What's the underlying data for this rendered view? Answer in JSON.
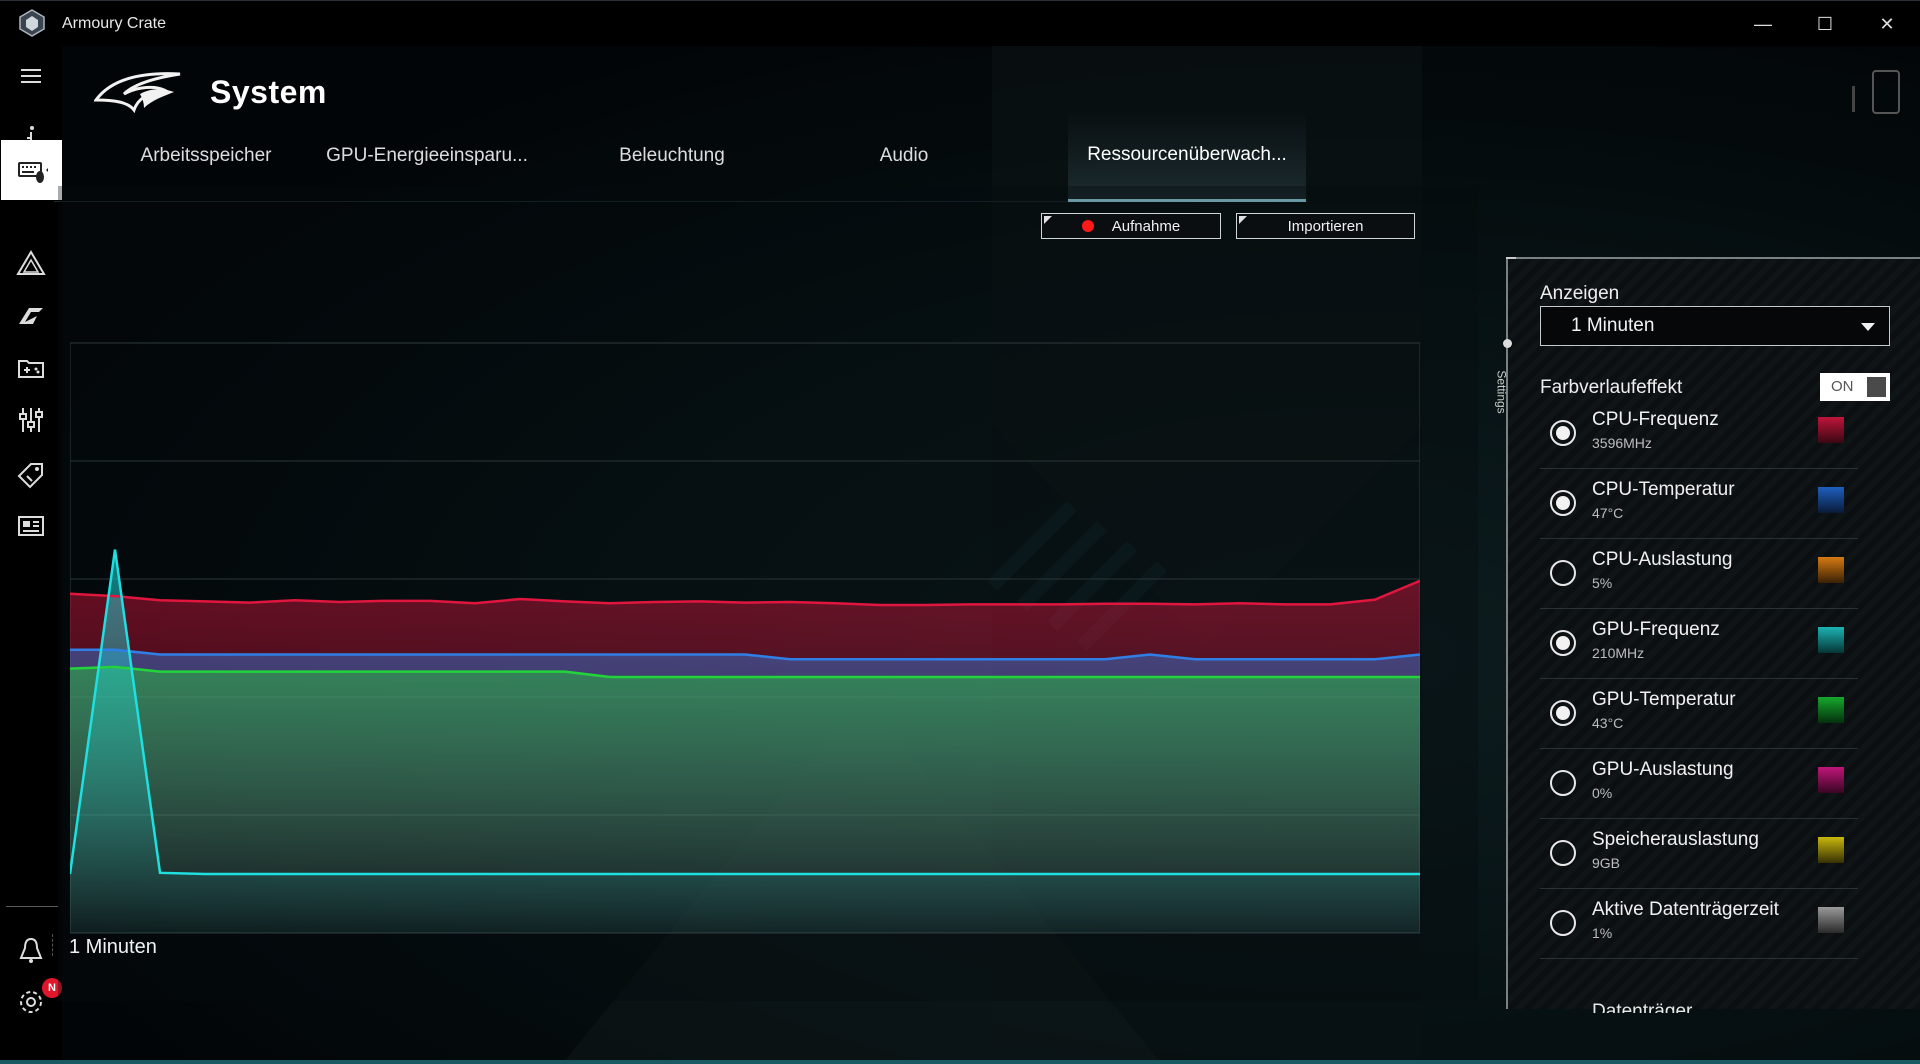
{
  "window": {
    "title": "Armoury Crate",
    "minimize_glyph": "—",
    "maximize_glyph": "☐",
    "close_glyph": "✕"
  },
  "header": {
    "page_title": "System"
  },
  "left_nav": {
    "items": [
      {
        "icon": "menu-icon"
      },
      {
        "icon": "info-icon"
      },
      {
        "icon": "device-icon",
        "active": true
      },
      {
        "icon": "aura-icon"
      },
      {
        "icon": "armoury-icon"
      },
      {
        "icon": "game-library-icon"
      },
      {
        "icon": "scenario-profiles-icon"
      },
      {
        "icon": "deals-icon"
      },
      {
        "icon": "news-icon"
      },
      {
        "icon": "user-center-icon"
      },
      {
        "icon": "settings-icon"
      }
    ],
    "settings_badge": "N"
  },
  "tabs": [
    {
      "label": "Arbeitsspeicher"
    },
    {
      "label": "GPU-Energieeinsparu..."
    },
    {
      "label": "Beleuchtung"
    },
    {
      "label": "Audio"
    },
    {
      "label": "Ressourcenüberwach...",
      "active": true
    }
  ],
  "toolbar": {
    "record_label": "Aufnahme",
    "import_label": "Importieren"
  },
  "chart_footer": {
    "range_label": "1 Minuten"
  },
  "colors": {
    "cpu_freq": "#e0163f",
    "cpu_temp": "#2f7fe6",
    "gpu_freq": "#1fe0e0",
    "gpu_temp": "#22d43a",
    "accent_tab": "#9fe3f5",
    "record_dot": "#ff1a1a"
  },
  "settings_panel": {
    "tab_label": "Settings",
    "display_label": "Anzeigen",
    "display_value": "1 Minuten",
    "gradient_label": "Farbverlaufeffekt",
    "gradient_toggle": "ON",
    "metrics": [
      {
        "name": "CPU-Frequenz",
        "value": "3596MHz",
        "checked": true,
        "color": "#c0143a"
      },
      {
        "name": "CPU-Temperatur",
        "value": "47°C",
        "checked": true,
        "color": "#1f5fbf"
      },
      {
        "name": "CPU-Auslastung",
        "value": "5%",
        "checked": false,
        "color": "#d67a12"
      },
      {
        "name": "GPU-Frequenz",
        "value": "210MHz",
        "checked": true,
        "color": "#1bb3b3"
      },
      {
        "name": "GPU-Temperatur",
        "value": "43°C",
        "checked": true,
        "color": "#16a82e"
      },
      {
        "name": "GPU-Auslastung",
        "value": "0%",
        "checked": false,
        "color": "#c0157a"
      },
      {
        "name": "Speicherauslastung",
        "value": "9GB",
        "checked": false,
        "color": "#c8b80e"
      },
      {
        "name": "Aktive Datenträgerzeit",
        "value": "1%",
        "checked": false,
        "color": "#9a9a9a"
      }
    ],
    "partial_next_item": "Datenträger..."
  },
  "chart_data": {
    "type": "area",
    "title": "",
    "xlabel": "1 Minuten",
    "ylabel": "",
    "grid": true,
    "x": [
      0,
      1,
      2,
      3,
      4,
      5,
      6,
      7,
      8,
      9,
      10,
      11,
      12,
      13,
      14,
      15,
      16,
      17,
      18,
      19,
      20,
      21,
      22,
      23,
      24,
      25,
      26,
      27,
      28,
      29,
      30
    ],
    "series": [
      {
        "name": "CPU-Frequenz",
        "color": "#e0163f",
        "values": [
          0.575,
          0.571,
          0.564,
          0.562,
          0.56,
          0.564,
          0.561,
          0.563,
          0.563,
          0.559,
          0.566,
          0.562,
          0.559,
          0.561,
          0.562,
          0.56,
          0.561,
          0.559,
          0.556,
          0.556,
          0.557,
          0.557,
          0.557,
          0.558,
          0.558,
          0.557,
          0.559,
          0.557,
          0.557,
          0.565,
          0.597
        ]
      },
      {
        "name": "CPU-Temperatur",
        "color": "#2f7fe6",
        "values": [
          0.48,
          0.48,
          0.472,
          0.472,
          0.472,
          0.472,
          0.472,
          0.472,
          0.472,
          0.472,
          0.472,
          0.472,
          0.472,
          0.472,
          0.472,
          0.472,
          0.464,
          0.464,
          0.464,
          0.464,
          0.464,
          0.464,
          0.464,
          0.464,
          0.472,
          0.464,
          0.464,
          0.464,
          0.464,
          0.464,
          0.472
        ]
      },
      {
        "name": "GPU-Temperatur",
        "color": "#22d43a",
        "values": [
          0.448,
          0.451,
          0.443,
          0.443,
          0.443,
          0.443,
          0.443,
          0.443,
          0.443,
          0.443,
          0.443,
          0.443,
          0.434,
          0.434,
          0.434,
          0.434,
          0.434,
          0.434,
          0.434,
          0.434,
          0.434,
          0.434,
          0.434,
          0.434,
          0.434,
          0.434,
          0.434,
          0.434,
          0.434,
          0.434,
          0.434
        ]
      },
      {
        "name": "GPU-Frequenz",
        "color": "#1fe0e0",
        "values": [
          0.1,
          0.65,
          0.102,
          0.1,
          0.1,
          0.1,
          0.1,
          0.1,
          0.1,
          0.1,
          0.1,
          0.1,
          0.1,
          0.1,
          0.1,
          0.1,
          0.1,
          0.1,
          0.1,
          0.1,
          0.1,
          0.1,
          0.1,
          0.1,
          0.1,
          0.1,
          0.1,
          0.1,
          0.1,
          0.1,
          0.1
        ]
      }
    ],
    "ylim": [
      0,
      1
    ]
  }
}
